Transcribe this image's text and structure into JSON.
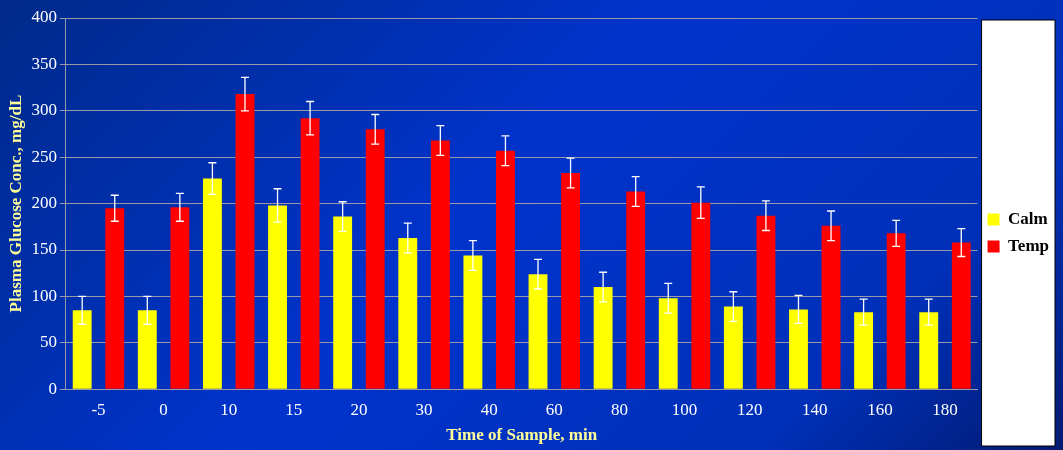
{
  "chart_data": {
    "type": "bar",
    "xlabel": "Time of Sample, min",
    "ylabel": "Plasma Glucose Conc., mg/dL",
    "categories": [
      "-5",
      "0",
      "10",
      "15",
      "20",
      "30",
      "40",
      "60",
      "80",
      "100",
      "120",
      "140",
      "160",
      "180"
    ],
    "series": [
      {
        "name": "Calm",
        "color": "#ffff00",
        "values": [
          85,
          85,
          227,
          198,
          186,
          163,
          144,
          124,
          110,
          98,
          89,
          86,
          83,
          83
        ],
        "errors": [
          15,
          15,
          17,
          18,
          16,
          16,
          16,
          16,
          16,
          16,
          16,
          15,
          14,
          14
        ]
      },
      {
        "name": "Temp",
        "color": "#ff0000",
        "values": [
          195,
          196,
          318,
          292,
          280,
          268,
          257,
          233,
          213,
          201,
          187,
          176,
          168,
          158
        ],
        "errors": [
          14,
          15,
          18,
          18,
          16,
          16,
          16,
          16,
          16,
          17,
          16,
          16,
          14,
          15
        ]
      }
    ],
    "ylim": [
      0,
      400
    ],
    "yticks": [
      0,
      50,
      100,
      150,
      200,
      250,
      300,
      350,
      400
    ],
    "grid": "y",
    "legend": "right"
  }
}
